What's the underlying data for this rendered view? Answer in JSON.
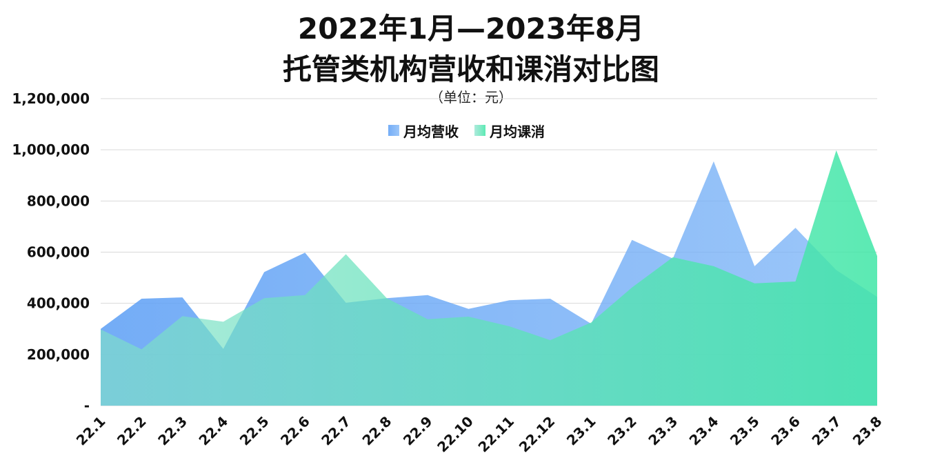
{
  "chart_data": {
    "type": "area",
    "title_lines": [
      "2022年1月—2023年8月",
      "托管类机构营收和课消对比图"
    ],
    "subtitle": "（单位：元）",
    "categories": [
      "22.1",
      "22.2",
      "22.3",
      "22.4",
      "22.5",
      "22.6",
      "22.7",
      "22.8",
      "22.9",
      "22.10",
      "22.11",
      "22.12",
      "23.1",
      "23.2",
      "23.3",
      "23.4",
      "23.5",
      "23.6",
      "23.7",
      "23.8"
    ],
    "y_ticks": [
      {
        "value": 0,
        "label": "-"
      },
      {
        "value": 200000,
        "label": "200,000"
      },
      {
        "value": 400000,
        "label": "400,000"
      },
      {
        "value": 600000,
        "label": "600,000"
      },
      {
        "value": 800000,
        "label": "800,000"
      },
      {
        "value": 1000000,
        "label": "1,000,000"
      },
      {
        "value": 1200000,
        "label": "1,200,000"
      }
    ],
    "ylim": [
      0,
      1200000
    ],
    "grid": true,
    "legend_position": "top-center",
    "series": [
      {
        "name": "月均营收",
        "color": "#6aa8f7",
        "values": [
          300000,
          418000,
          423000,
          222000,
          522000,
          598000,
          402000,
          420000,
          432000,
          378000,
          412000,
          418000,
          320000,
          648000,
          575000,
          955000,
          545000,
          695000,
          530000,
          425000
        ]
      },
      {
        "name": "月均课消",
        "color": "#5ee8b0",
        "values": [
          298000,
          220000,
          350000,
          328000,
          420000,
          432000,
          592000,
          420000,
          338000,
          348000,
          310000,
          256000,
          325000,
          462000,
          580000,
          545000,
          478000,
          485000,
          998000,
          585000
        ]
      }
    ]
  }
}
